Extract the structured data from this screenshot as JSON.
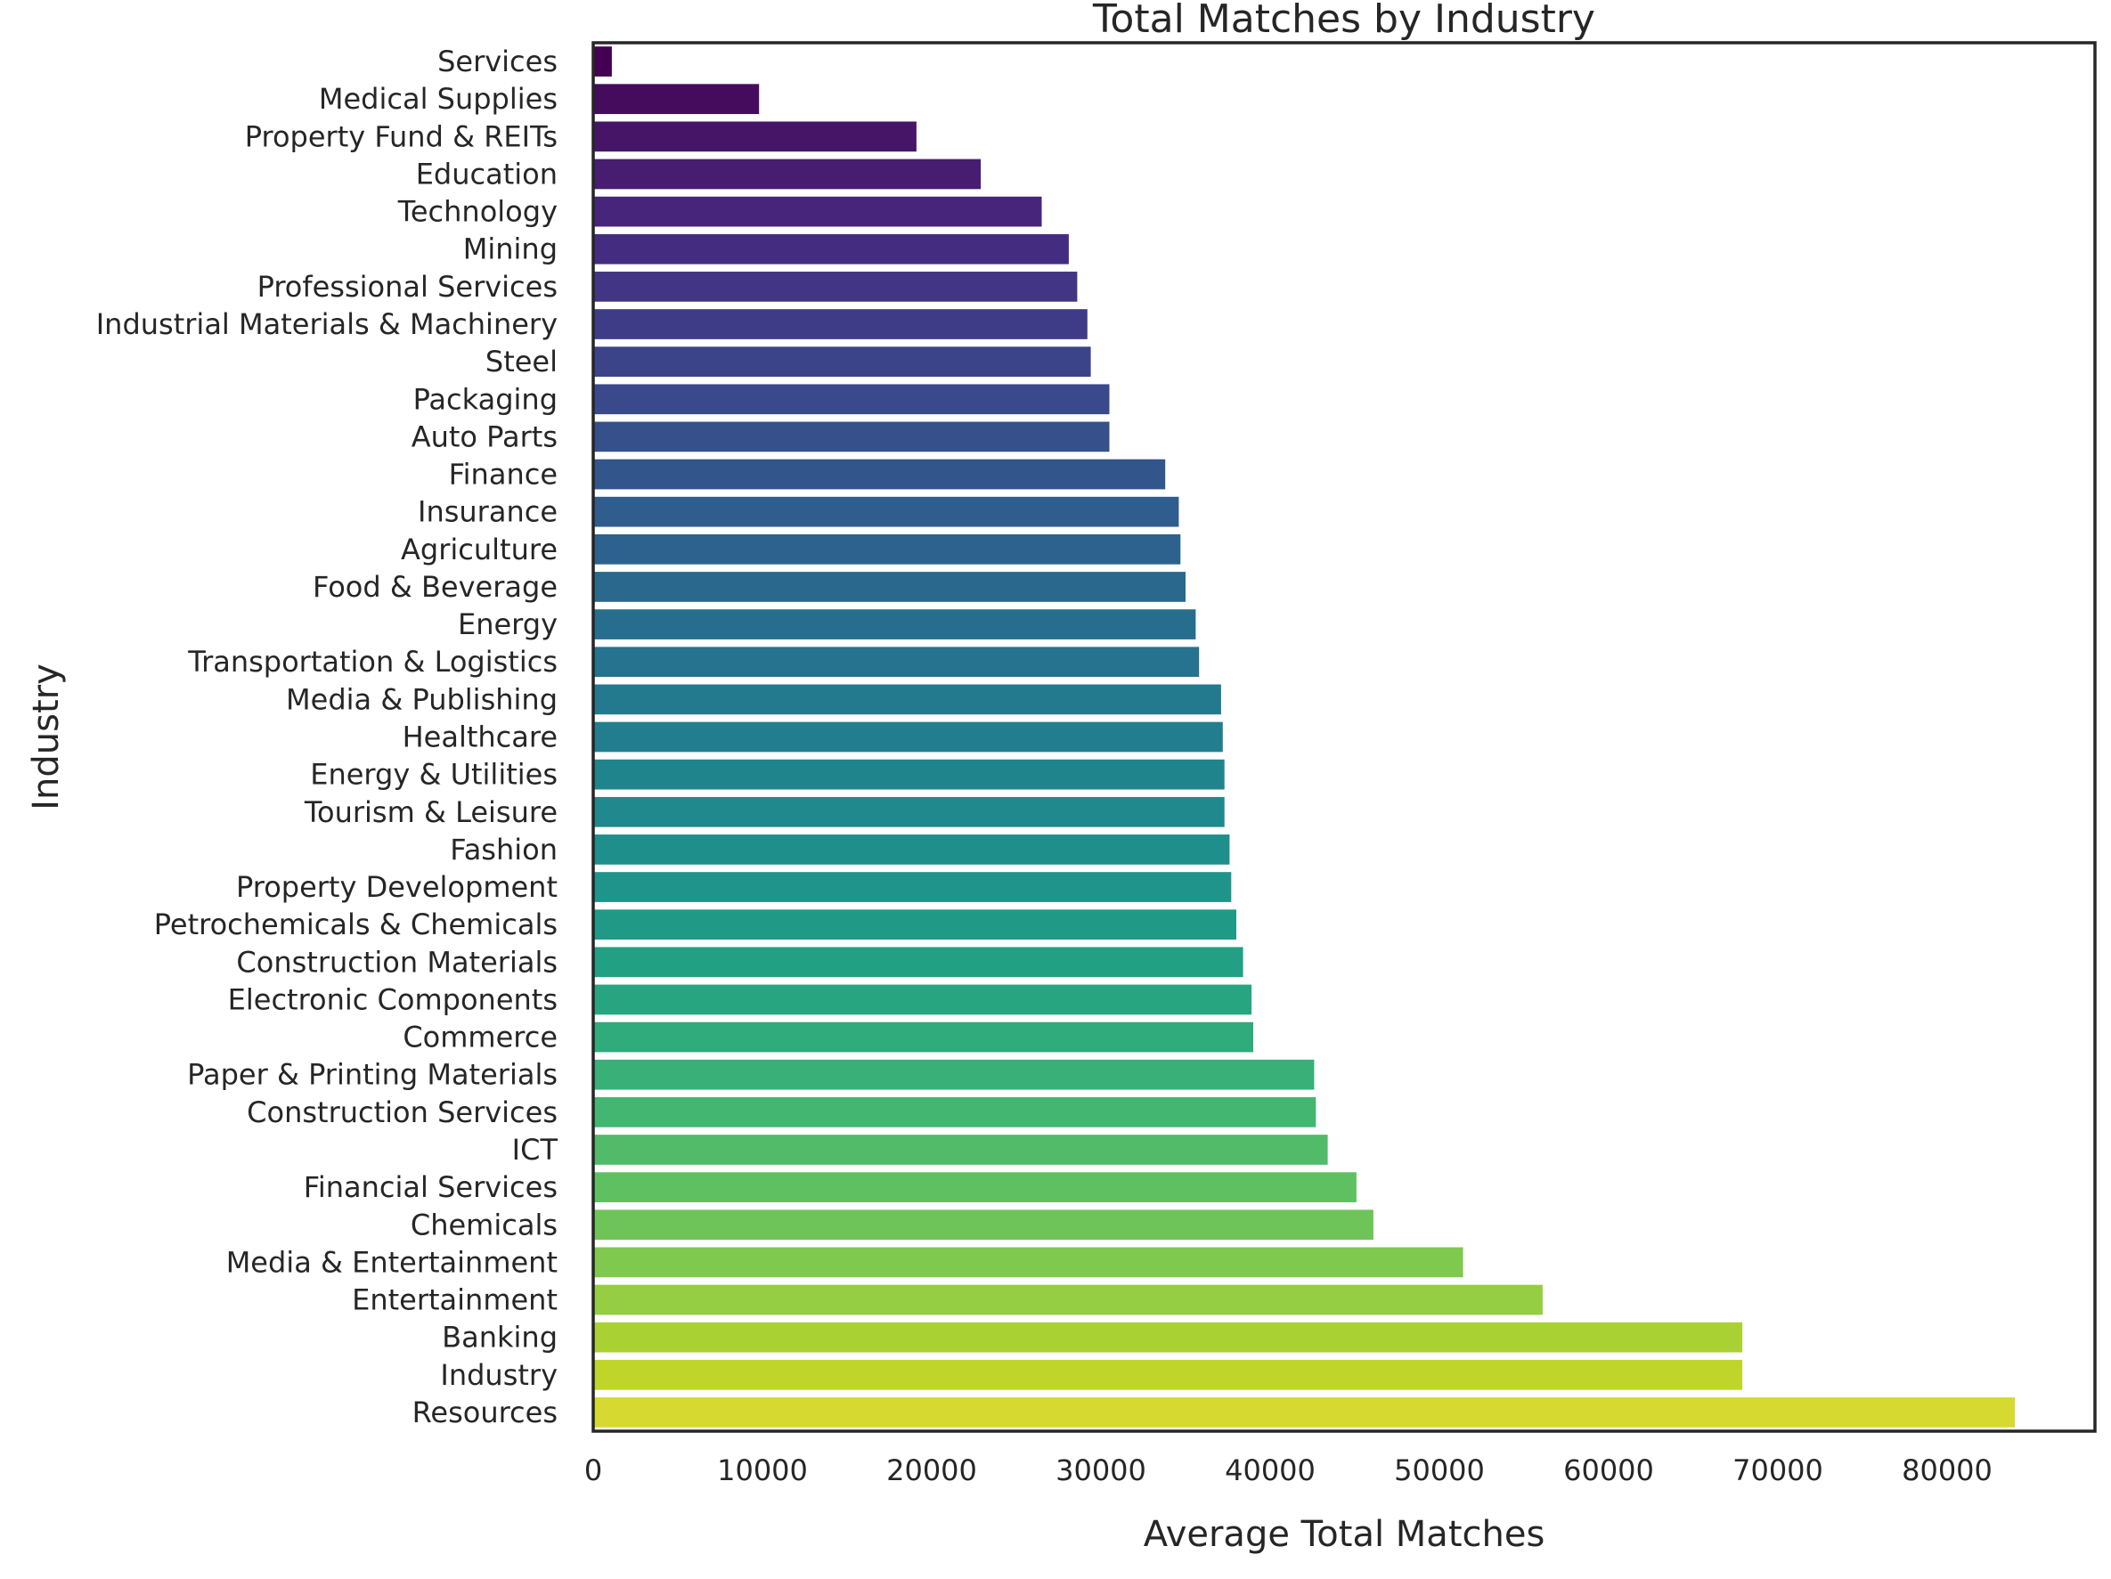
{
  "chart_data": {
    "type": "bar",
    "orientation": "horizontal",
    "title": "Total Matches by Industry",
    "xlabel": "Average Total Matches",
    "ylabel": "Industry",
    "xlim": [
      0,
      88000
    ],
    "xticks": [
      0,
      10000,
      20000,
      30000,
      40000,
      50000,
      60000,
      70000,
      80000
    ],
    "grid": false,
    "colormap": "viridis",
    "categories": [
      "Services",
      "Medical Supplies",
      "Property Fund & REITs",
      "Education",
      "Technology",
      "Mining",
      "Professional Services",
      "Industrial Materials & Machinery",
      "Steel",
      "Packaging",
      "Auto Parts",
      "Finance",
      "Insurance",
      "Agriculture",
      "Food & Beverage",
      "Energy",
      "Transportation & Logistics",
      "Media & Publishing",
      "Healthcare",
      "Energy & Utilities",
      "Tourism & Leisure",
      "Fashion",
      "Property Development",
      "Petrochemicals & Chemicals",
      "Construction Materials",
      "Electronic Components",
      "Commerce",
      "Paper & Printing Materials",
      "Construction Services",
      "ICT",
      "Financial Services",
      "Chemicals",
      "Media & Entertainment",
      "Entertainment",
      "Banking",
      "Industry",
      "Resources"
    ],
    "values": [
      1100,
      9800,
      19100,
      22900,
      26500,
      28100,
      28600,
      29200,
      29400,
      30500,
      30500,
      33800,
      34600,
      34700,
      35000,
      35600,
      35800,
      37100,
      37200,
      37300,
      37300,
      37600,
      37700,
      38000,
      38400,
      38900,
      39000,
      42600,
      42700,
      43400,
      45100,
      46100,
      51400,
      56100,
      67900,
      67900,
      84000
    ],
    "colors": [
      "#440154",
      "#450c5e",
      "#461568",
      "#461d71",
      "#46257b",
      "#442d80",
      "#423584",
      "#3f3c87",
      "#3c4489",
      "#39498b",
      "#36508c",
      "#32568c",
      "#2f5d8d",
      "#2c628d",
      "#2a688e",
      "#276e8e",
      "#25738e",
      "#23798e",
      "#227e8e",
      "#20848d",
      "#1f898d",
      "#1e8f8b",
      "#1f948a",
      "#209a87",
      "#22a084",
      "#27a581",
      "#2fab7c",
      "#38b077",
      "#43b672",
      "#51bb6a",
      "#5fc062",
      "#6ec459",
      "#80c94f",
      "#95cd43",
      "#a9d134",
      "#bfd52a",
      "#d6d92f"
    ]
  }
}
